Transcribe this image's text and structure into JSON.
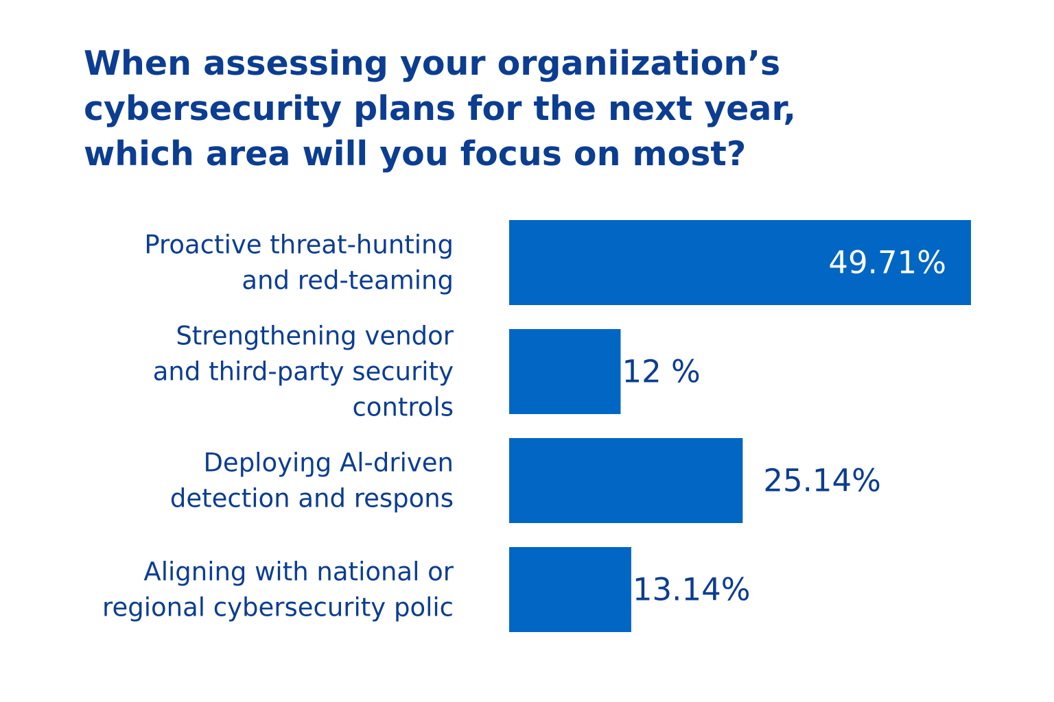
{
  "chart_data": {
    "type": "bar",
    "orientation": "horizontal",
    "title": "When assessing your organiization’s cybersecurity plans for the next year, which area will you focus on most?",
    "categories": [
      [
        "Proactive threat-hunting",
        "and red-teaming"
      ],
      [
        "Strengthening vendor",
        "and third-party security",
        "controls"
      ],
      [
        "Deployiŋg Al-driven",
        "detection and respons"
      ],
      [
        "Aligning with national or",
        "regional cybersecurity polic"
      ]
    ],
    "values": [
      49.71,
      12,
      25.14,
      13.14
    ],
    "value_labels": [
      "49.71%",
      "12 %",
      "25.14%",
      "13.14%"
    ],
    "grid": false,
    "legend": "none",
    "colors": {
      "bar": "#0266c4",
      "text": "#0b3d91",
      "label_inside": "#ffffff"
    }
  }
}
